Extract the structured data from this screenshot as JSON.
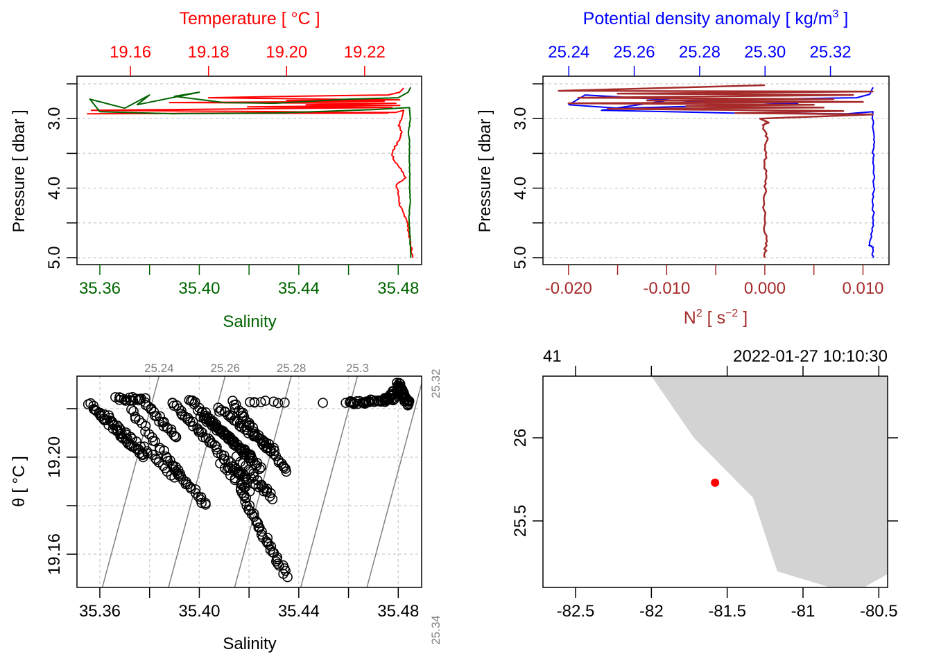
{
  "colors": {
    "temperature": "#ff0000",
    "salinity": "#006400",
    "sigma": "#0000ff",
    "n2": "#a52a2a",
    "grid": "#d3d3d3",
    "isopycnal": "#808080",
    "land": "#d3d3d3",
    "station": "#ff0000",
    "axis": "#000000"
  },
  "chart_data": [
    {
      "id": "ts-profile",
      "type": "line",
      "title": "",
      "top_axis": {
        "label": "Temperature [ °C ]",
        "ticks": [
          19.16,
          19.18,
          19.2,
          19.22
        ],
        "tick_labels": [
          "19.16",
          "19.18",
          "19.20",
          "19.22"
        ],
        "range": [
          19.1463,
          19.2346
        ]
      },
      "bottom_axis": {
        "label": "Salinity",
        "ticks": [
          35.36,
          35.38,
          35.4,
          35.42,
          35.44,
          35.46,
          35.48
        ],
        "tick_labels": [
          "35.36",
          "",
          "35.40",
          "",
          "35.44",
          "",
          "35.48"
        ],
        "range": [
          35.3508,
          35.4894
        ]
      },
      "left_axis": {
        "label": "Pressure [ dbar ]",
        "ticks": [
          2.5,
          3.0,
          3.5,
          4.0,
          4.5,
          5.0
        ],
        "tick_labels": [
          "",
          "3.0",
          "",
          "4.0",
          "",
          "5.0"
        ],
        "range": [
          5.1,
          2.39
        ],
        "reversed": true
      },
      "grid": true,
      "series": [
        {
          "name": "Temperature",
          "axis": "top",
          "color_key": "temperature",
          "points": [
            [
              19.23,
              2.56
            ],
            [
              19.229,
              2.62
            ],
            [
              19.226,
              2.66
            ],
            [
              19.2,
              2.68
            ],
            [
              19.18,
              2.7
            ],
            [
              19.21,
              2.72
            ],
            [
              19.229,
              2.73
            ],
            [
              19.2,
              2.74
            ],
            [
              19.225,
              2.75
            ],
            [
              19.17,
              2.77
            ],
            [
              19.228,
              2.78
            ],
            [
              19.205,
              2.8
            ],
            [
              19.229,
              2.81
            ],
            [
              19.19,
              2.83
            ],
            [
              19.227,
              2.84
            ],
            [
              19.15,
              2.88
            ],
            [
              19.2,
              2.9
            ],
            [
              19.226,
              2.92
            ],
            [
              19.149,
              2.93
            ],
            [
              19.228,
              2.91
            ],
            [
              19.23,
              2.88
            ],
            [
              19.2295,
              3.0
            ],
            [
              19.2288,
              3.1
            ],
            [
              19.2295,
              3.2
            ],
            [
              19.229,
              3.3
            ],
            [
              19.2278,
              3.4
            ],
            [
              19.227,
              3.5
            ],
            [
              19.2275,
              3.6
            ],
            [
              19.229,
              3.7
            ],
            [
              19.2305,
              3.85
            ],
            [
              19.2282,
              3.95
            ],
            [
              19.2285,
              4.05
            ],
            [
              19.2288,
              4.15
            ],
            [
              19.229,
              4.25
            ],
            [
              19.2298,
              4.35
            ],
            [
              19.2308,
              4.45
            ],
            [
              19.2312,
              4.6
            ],
            [
              19.2316,
              4.75
            ],
            [
              19.232,
              4.88
            ],
            [
              19.2323,
              5.0
            ]
          ]
        },
        {
          "name": "Salinity",
          "axis": "bottom",
          "color_key": "salinity",
          "points": [
            [
              35.485,
              2.55
            ],
            [
              35.484,
              2.62
            ],
            [
              35.48,
              2.7
            ],
            [
              35.46,
              2.72
            ],
            [
              35.43,
              2.78
            ],
            [
              35.41,
              2.77
            ],
            [
              35.39,
              2.68
            ],
            [
              35.4,
              2.62
            ],
            [
              35.375,
              2.8
            ],
            [
              35.38,
              2.66
            ],
            [
              35.37,
              2.85
            ],
            [
              35.356,
              2.72
            ],
            [
              35.36,
              2.9
            ],
            [
              35.39,
              2.93
            ],
            [
              35.43,
              2.92
            ],
            [
              35.47,
              2.87
            ],
            [
              35.4845,
              2.84
            ],
            [
              35.4848,
              3.0
            ],
            [
              35.4842,
              3.2
            ],
            [
              35.4846,
              3.4
            ],
            [
              35.4845,
              3.6
            ],
            [
              35.4847,
              3.8
            ],
            [
              35.4846,
              4.0
            ],
            [
              35.4848,
              4.2
            ],
            [
              35.4844,
              4.4
            ],
            [
              35.4846,
              4.6
            ],
            [
              35.4848,
              4.8
            ],
            [
              35.485,
              5.0
            ]
          ]
        }
      ]
    },
    {
      "id": "density-n2-profile",
      "type": "line",
      "top_axis": {
        "label": "Potential density anomaly [ kg/m³ ]",
        "ticks": [
          25.24,
          25.26,
          25.28,
          25.3,
          25.32
        ],
        "tick_labels": [
          "25.24",
          "25.26",
          "25.28",
          "25.30",
          "25.32"
        ],
        "range": [
          25.2321,
          25.3379
        ]
      },
      "bottom_axis": {
        "label": "N² [ s⁻² ]",
        "ticks": [
          -0.02,
          -0.015,
          -0.01,
          -0.005,
          0.0,
          0.005,
          0.01
        ],
        "tick_labels": [
          "-0.020",
          "",
          "-0.010",
          "",
          "0.000",
          "",
          "0.010"
        ],
        "range": [
          -0.0226,
          0.01265
        ]
      },
      "left_axis": {
        "label": "Pressure [ dbar ]",
        "ticks": [
          2.5,
          3.0,
          3.5,
          4.0,
          4.5,
          5.0
        ],
        "tick_labels": [
          "",
          "3.0",
          "",
          "4.0",
          "",
          "5.0"
        ],
        "range": [
          5.1,
          2.39
        ],
        "reversed": true
      },
      "grid": true,
      "series": [
        {
          "name": "Potential density anomaly",
          "axis": "top",
          "color_key": "sigma",
          "points": [
            [
              25.333,
              2.55
            ],
            [
              25.332,
              2.65
            ],
            [
              25.328,
              2.7
            ],
            [
              25.3,
              2.72
            ],
            [
              25.28,
              2.76
            ],
            [
              25.26,
              2.7
            ],
            [
              25.245,
              2.66
            ],
            [
              25.24,
              2.8
            ],
            [
              25.255,
              2.85
            ],
            [
              25.28,
              2.82
            ],
            [
              25.31,
              2.78
            ],
            [
              25.27,
              2.74
            ],
            [
              25.25,
              2.88
            ],
            [
              25.29,
              2.92
            ],
            [
              25.325,
              2.93
            ],
            [
              25.333,
              2.9
            ],
            [
              25.3328,
              3.0
            ],
            [
              25.3332,
              3.3
            ],
            [
              25.333,
              3.6
            ],
            [
              25.3333,
              3.9
            ],
            [
              25.333,
              4.2
            ],
            [
              25.3332,
              4.5
            ],
            [
              25.3318,
              4.82
            ],
            [
              25.3331,
              4.85
            ],
            [
              25.333,
              5.0
            ]
          ]
        },
        {
          "name": "N2",
          "axis": "bottom",
          "color_key": "n2",
          "points": [
            [
              0.0,
              2.52
            ],
            [
              -0.021,
              2.6
            ],
            [
              0.011,
              2.61
            ],
            [
              -0.015,
              2.64
            ],
            [
              0.009,
              2.66
            ],
            [
              -0.019,
              2.7
            ],
            [
              0.007,
              2.72
            ],
            [
              -0.012,
              2.74
            ],
            [
              0.01,
              2.76
            ],
            [
              -0.02,
              2.78
            ],
            [
              0.005,
              2.8
            ],
            [
              -0.008,
              2.82
            ],
            [
              0.006,
              2.84
            ],
            [
              -0.016,
              2.86
            ],
            [
              0.008,
              2.89
            ],
            [
              -0.003,
              2.92
            ],
            [
              0.011,
              2.94
            ],
            [
              -0.0005,
              3.0
            ],
            [
              0.0004,
              3.05
            ],
            [
              -0.0002,
              3.1
            ],
            [
              0.0002,
              3.3
            ],
            [
              0.0,
              3.6
            ],
            [
              0.0001,
              3.9
            ],
            [
              -0.0001,
              4.2
            ],
            [
              0.0,
              4.5
            ],
            [
              0.0001,
              4.8
            ],
            [
              0.0,
              5.0
            ]
          ]
        }
      ]
    },
    {
      "id": "ts-diagram",
      "type": "scatter",
      "xlabel": "Salinity",
      "ylabel": "θ [ °C ]",
      "x_axis": {
        "ticks": [
          35.36,
          35.38,
          35.4,
          35.42,
          35.44,
          35.46,
          35.48
        ],
        "tick_labels": [
          "35.36",
          "",
          "35.40",
          "",
          "35.44",
          "",
          "35.48"
        ],
        "range": [
          35.3508,
          35.4894
        ]
      },
      "y_axis": {
        "ticks": [
          19.16,
          19.18,
          19.2,
          19.22
        ],
        "tick_labels": [
          "19.16",
          "",
          "19.20",
          ""
        ],
        "range": [
          19.1463,
          19.2334
        ]
      },
      "grid": true,
      "isopycnals": {
        "labels": [
          "25.24",
          "25.26",
          "25.28",
          "25.3",
          "25.32",
          "25.34"
        ],
        "lines": [
          {
            "label": "25.24",
            "bottom_S": 35.361,
            "top_S": 35.3838,
            "left_theta": 19.2055
          },
          {
            "label": "25.26",
            "bottom_S": 35.3876,
            "top_S": 35.4104
          },
          {
            "label": "25.28",
            "bottom_S": 35.4142,
            "top_S": 35.437
          },
          {
            "label": "25.3",
            "bottom_S": 35.4408,
            "top_S": 35.4636
          },
          {
            "label": "25.32",
            "bottom_S": 35.4674,
            "top_S": 35.4902
          },
          {
            "label": "25.34",
            "bottom_S": 35.494,
            "top_S": 35.5168
          }
        ]
      },
      "clusters": [
        {
          "from": [
            35.356,
            19.222
          ],
          "to": [
            35.378,
            19.2
          ],
          "count": 45
        },
        {
          "from": [
            35.362,
            19.218
          ],
          "to": [
            35.39,
            19.192
          ],
          "count": 25
        },
        {
          "from": [
            35.367,
            19.224
          ],
          "to": [
            35.378,
            19.224
          ],
          "count": 18
        },
        {
          "from": [
            35.372,
            19.22
          ],
          "to": [
            35.392,
            19.193
          ],
          "count": 22
        },
        {
          "from": [
            35.388,
            19.198
          ],
          "to": [
            35.403,
            19.18
          ],
          "count": 22
        },
        {
          "from": [
            35.378,
            19.222
          ],
          "to": [
            35.391,
            19.208
          ],
          "count": 20
        },
        {
          "from": [
            35.389,
            19.223
          ],
          "to": [
            35.419,
            19.19
          ],
          "count": 45
        },
        {
          "from": [
            35.396,
            19.224
          ],
          "to": [
            35.425,
            19.195
          ],
          "count": 45
        },
        {
          "from": [
            35.401,
            19.217
          ],
          "to": [
            35.421,
            19.2
          ],
          "count": 40
        },
        {
          "from": [
            35.408,
            19.22
          ],
          "to": [
            35.43,
            19.203
          ],
          "count": 35
        },
        {
          "from": [
            35.413,
            19.223
          ],
          "to": [
            35.435,
            19.194
          ],
          "count": 35
        },
        {
          "from": [
            35.413,
            19.196
          ],
          "to": [
            35.428,
            19.185
          ],
          "count": 15
        },
        {
          "from": [
            35.415,
            19.2
          ],
          "to": [
            35.43,
            19.183
          ],
          "count": 15
        },
        {
          "from": [
            35.416,
            19.187
          ],
          "to": [
            35.435,
            19.151
          ],
          "count": 40
        },
        {
          "from": [
            35.409,
            19.197
          ],
          "to": [
            35.42,
            19.186
          ],
          "count": 12
        },
        {
          "from": [
            35.42,
            19.223
          ],
          "to": [
            35.432,
            19.223
          ],
          "count": 6
        },
        {
          "from": [
            35.46,
            19.2223
          ],
          "to": [
            35.479,
            19.224
          ],
          "count": 40
        },
        {
          "from": [
            35.474,
            19.223
          ],
          "to": [
            35.481,
            19.229
          ],
          "count": 30
        },
        {
          "from": [
            35.48,
            19.23
          ],
          "to": [
            35.484,
            19.222
          ],
          "count": 40
        }
      ],
      "single_points": [
        [
          35.4222,
          19.2225
        ],
        [
          35.4343,
          19.2225
        ],
        [
          35.4497,
          19.2224
        ],
        [
          35.4589,
          19.2224
        ],
        [
          35.4664,
          19.2224
        ],
        [
          35.4808,
          19.2302
        ]
      ]
    },
    {
      "id": "station-map",
      "type": "map",
      "top_axis_labels": {
        "left": "41",
        "right": "2022-01-27 10:10:30"
      },
      "x_axis": {
        "label": "",
        "ticks": [
          -82.5,
          -82,
          -81.5,
          -81,
          -80.5
        ],
        "tick_labels": [
          "-82.5",
          "-82",
          "-81.5",
          "-81",
          "-80.5"
        ],
        "range": [
          -82.715,
          -80.442
        ]
      },
      "y_axis": {
        "label": "",
        "ticks": [
          26,
          25.5
        ],
        "tick_labels": [
          "26",
          "25.5"
        ],
        "range": [
          25.1,
          26.371
        ]
      },
      "coastline": [
        [
          -82.0,
          26.371
        ],
        [
          -81.72,
          26.0
        ],
        [
          -81.33,
          25.64
        ],
        [
          -81.17,
          25.197
        ],
        [
          -80.82,
          25.1
        ],
        [
          -80.6,
          25.1
        ],
        [
          -80.442,
          25.18
        ],
        [
          -80.442,
          26.371
        ]
      ],
      "station": {
        "lon": -81.58,
        "lat": 25.73,
        "cast": "41",
        "time": "2022-01-27 10:10:30"
      }
    }
  ]
}
